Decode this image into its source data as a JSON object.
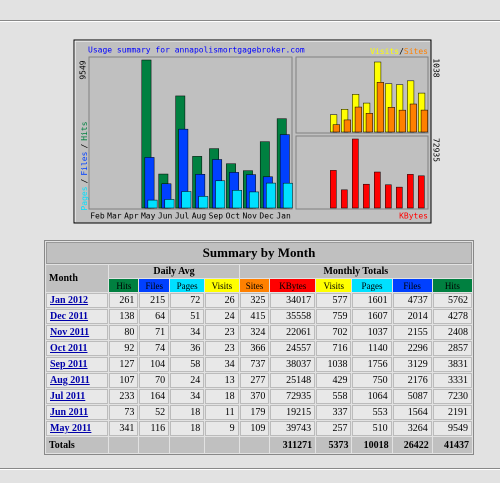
{
  "chart_data": [
    {
      "type": "bar",
      "title": "Usage summary for annapolismortgagebroker.com",
      "categories": [
        "Feb",
        "Mar",
        "Apr",
        "May",
        "Jun",
        "Jul",
        "Aug",
        "Sep",
        "Oct",
        "Nov",
        "Dec",
        "Jan"
      ],
      "series": [
        {
          "name": "Hits",
          "color": "#008040",
          "values": [
            null,
            null,
            null,
            9549,
            2191,
            7230,
            3331,
            3831,
            2857,
            2408,
            4278,
            5762
          ]
        },
        {
          "name": "Files",
          "color": "#0040ff",
          "values": [
            null,
            null,
            null,
            3264,
            1564,
            5087,
            2176,
            3129,
            2296,
            2155,
            2014,
            4737
          ]
        },
        {
          "name": "Pages",
          "color": "#00e0ff",
          "values": [
            null,
            null,
            null,
            510,
            553,
            1064,
            750,
            1756,
            1140,
            1037,
            1607,
            1601
          ]
        }
      ],
      "ylim": [
        0,
        9549
      ],
      "yticks": [
        9549
      ],
      "label_separator": "/"
    },
    {
      "type": "bar",
      "series": [
        {
          "name": "Visits",
          "color": "#ffff00",
          "values": [
            null,
            null,
            null,
            257,
            337,
            558,
            429,
            1038,
            716,
            702,
            759,
            577
          ]
        },
        {
          "name": "Sites",
          "color": "#ff8000",
          "values": [
            null,
            null,
            null,
            109,
            179,
            370,
            277,
            737,
            366,
            324,
            415,
            325
          ]
        }
      ],
      "ylim": [
        0,
        1038
      ],
      "yticks": [
        1038
      ]
    },
    {
      "type": "bar",
      "series": [
        {
          "name": "KBytes",
          "color": "#ff0000",
          "values": [
            null,
            null,
            null,
            39743,
            19215,
            72935,
            25148,
            38037,
            24557,
            22061,
            35558,
            34017
          ]
        }
      ],
      "ylim": [
        0,
        72935
      ],
      "yticks": [
        72935
      ]
    }
  ],
  "table": {
    "title": "Summary by Month",
    "headers": {
      "month": "Month",
      "daily_avg": "Daily Avg",
      "monthly_totals": "Monthly Totals",
      "daily_columns": [
        "Hits",
        "Files",
        "Pages",
        "Visits"
      ],
      "total_columns": [
        "Sites",
        "KBytes",
        "Visits",
        "Pages",
        "Files",
        "Hits"
      ]
    },
    "rows": [
      {
        "month": "Jan 2012",
        "values": [
          261,
          215,
          72,
          26,
          325,
          34017,
          577,
          1601,
          4737,
          5762
        ]
      },
      {
        "month": "Dec 2011",
        "values": [
          138,
          64,
          51,
          24,
          415,
          35558,
          759,
          1607,
          2014,
          4278
        ]
      },
      {
        "month": "Nov 2011",
        "values": [
          80,
          71,
          34,
          23,
          324,
          22061,
          702,
          1037,
          2155,
          2408
        ]
      },
      {
        "month": "Oct 2011",
        "values": [
          92,
          74,
          36,
          23,
          366,
          24557,
          716,
          1140,
          2296,
          2857
        ]
      },
      {
        "month": "Sep 2011",
        "values": [
          127,
          104,
          58,
          34,
          737,
          38037,
          1038,
          1756,
          3129,
          3831
        ]
      },
      {
        "month": "Aug 2011",
        "values": [
          107,
          70,
          24,
          13,
          277,
          25148,
          429,
          750,
          2176,
          3331
        ]
      },
      {
        "month": "Jul 2011",
        "values": [
          233,
          164,
          34,
          18,
          370,
          72935,
          558,
          1064,
          5087,
          7230
        ]
      },
      {
        "month": "Jun 2011",
        "values": [
          73,
          52,
          18,
          11,
          179,
          19215,
          337,
          553,
          1564,
          2191
        ]
      },
      {
        "month": "May 2011",
        "values": [
          341,
          116,
          18,
          9,
          109,
          39743,
          257,
          510,
          3264,
          9549
        ]
      }
    ],
    "totals": {
      "label": "Totals",
      "values": [
        311271,
        5373,
        10018,
        26422,
        41437
      ]
    }
  }
}
